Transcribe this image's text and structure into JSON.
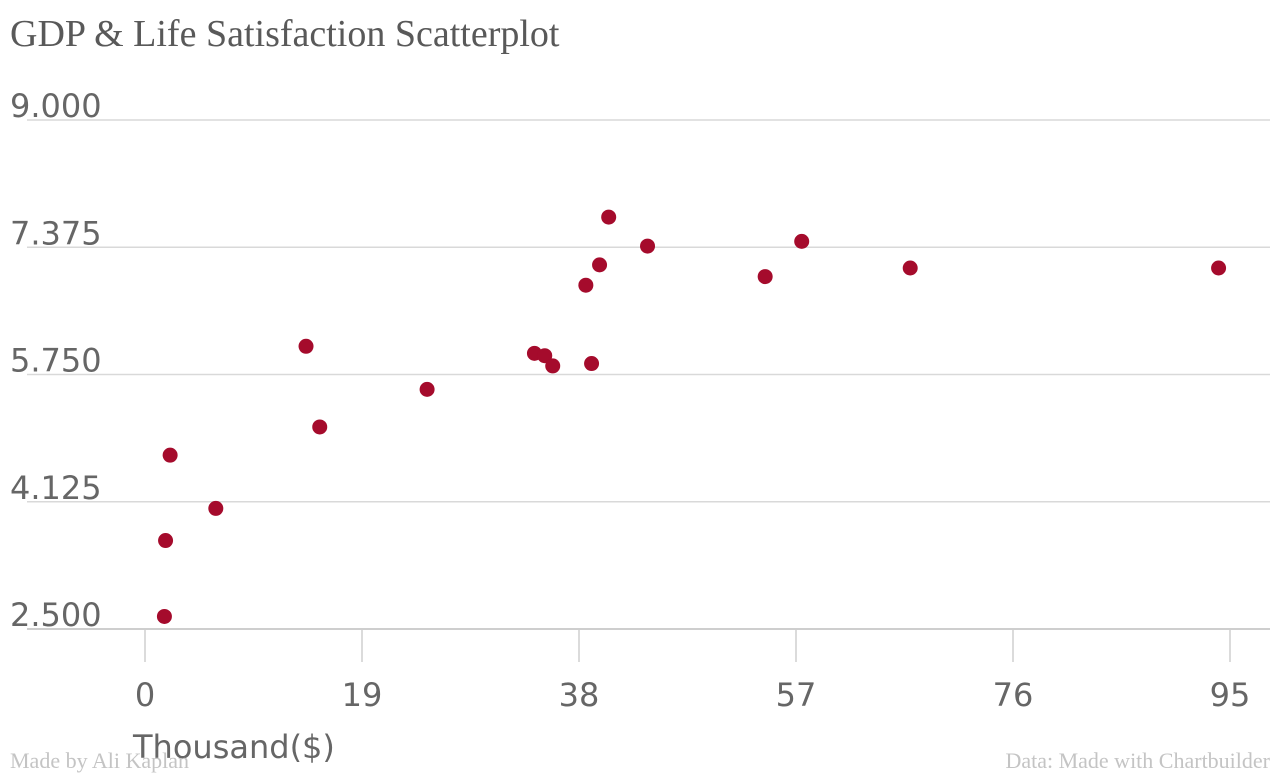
{
  "chart_data": {
    "type": "scatter",
    "title": "GDP & Life Satisfaction Scatterplot",
    "xlabel": "Thousand($)",
    "ylabel": "",
    "xlim": [
      0,
      95
    ],
    "ylim": [
      2.5,
      9.0
    ],
    "x_ticks": [
      "0",
      "19",
      "38",
      "57",
      "76",
      "95"
    ],
    "y_ticks": [
      "9.000",
      "7.375",
      "5.750",
      "4.125",
      "2.500"
    ],
    "grid": true,
    "color": "#a50b2c",
    "points": [
      {
        "x": 1.7,
        "y": 2.66
      },
      {
        "x": 1.8,
        "y": 3.63
      },
      {
        "x": 2.2,
        "y": 4.72
      },
      {
        "x": 6.2,
        "y": 4.04
      },
      {
        "x": 14.1,
        "y": 6.11
      },
      {
        "x": 15.3,
        "y": 5.08
      },
      {
        "x": 24.7,
        "y": 5.56
      },
      {
        "x": 34.1,
        "y": 6.02
      },
      {
        "x": 35.0,
        "y": 5.99
      },
      {
        "x": 35.7,
        "y": 5.86
      },
      {
        "x": 38.6,
        "y": 6.89
      },
      {
        "x": 39.1,
        "y": 5.89
      },
      {
        "x": 39.8,
        "y": 7.15
      },
      {
        "x": 40.6,
        "y": 7.76
      },
      {
        "x": 44.0,
        "y": 7.39
      },
      {
        "x": 54.3,
        "y": 7.0
      },
      {
        "x": 57.5,
        "y": 7.45
      },
      {
        "x": 67.0,
        "y": 7.11
      },
      {
        "x": 94.0,
        "y": 7.11
      }
    ]
  },
  "footer": {
    "left": "Made by Ali Kaplan",
    "right": "Data: Made with Chartbuilder"
  }
}
